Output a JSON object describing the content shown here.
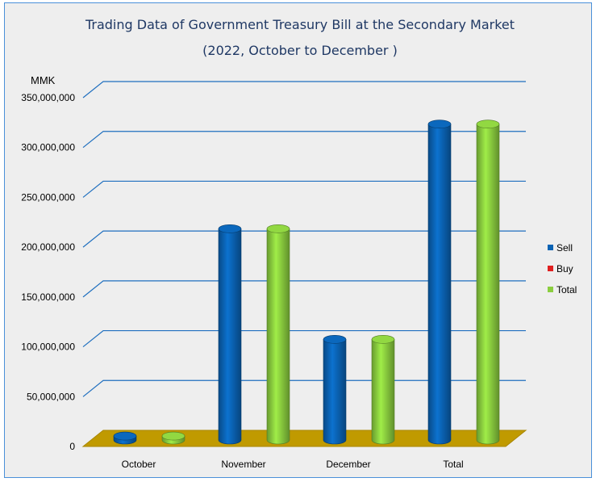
{
  "chart_data": {
    "type": "bar",
    "title": "Trading Data of Government Treasury Bill at the Secondary Market",
    "subtitle": "(2022, October to December )",
    "ylabel": "MMK",
    "xlabel": "",
    "categories": [
      "October",
      "November",
      "December",
      "Total"
    ],
    "series": [
      {
        "name": "Sell",
        "color": "#0a63b4",
        "values": [
          4000000,
          212000000,
          101000000,
          317000000
        ]
      },
      {
        "name": "Buy",
        "color": "#e02020",
        "values": [
          0,
          0,
          0,
          0
        ]
      },
      {
        "name": "Total",
        "color": "#8bce3f",
        "values": [
          4000000,
          212000000,
          101000000,
          317000000
        ]
      }
    ],
    "ylim": [
      0,
      350000000
    ],
    "yticks": [
      0,
      50000000,
      100000000,
      150000000,
      200000000,
      250000000,
      300000000,
      350000000
    ],
    "ytick_labels": [
      "0",
      "50,000,000",
      "100,000,000",
      "150,000,000",
      "200,000,000",
      "250,000,000",
      "300,000,000",
      "350,000,000"
    ],
    "grid": true,
    "legend_position": "right",
    "floor_color": "#c09a00",
    "gridline_color": "#1f6fbf"
  }
}
